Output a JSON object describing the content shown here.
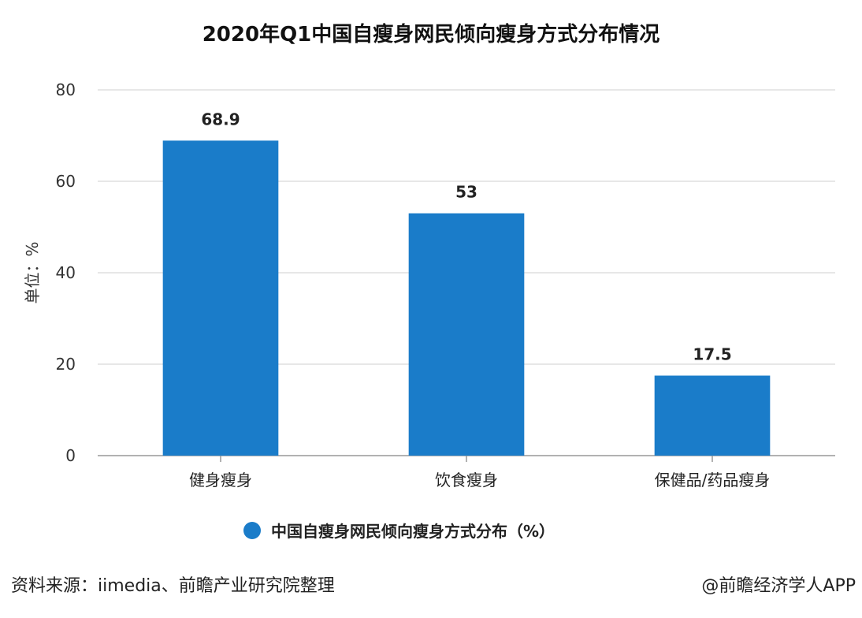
{
  "chart_data": {
    "type": "bar",
    "title": "2020年Q1中国自瘦身网民倾向瘦身方式分布情况",
    "ylabel": "单位：%",
    "xlabel": "",
    "categories": [
      "健身瘦身",
      "饮食瘦身",
      "保健品/药品瘦身"
    ],
    "series": [
      {
        "name": "中国自瘦身网民倾向瘦身方式分布（%）",
        "values": [
          68.9,
          53,
          17.5
        ],
        "labels": [
          "68.9",
          "53",
          "17.5"
        ]
      }
    ],
    "ylim": [
      0,
      80
    ],
    "yticks": [
      0,
      20,
      40,
      60,
      80
    ],
    "grid": true,
    "legend": "bottom-center",
    "bar_color": "#1a7cc9"
  },
  "footer": {
    "source": "资料来源：iimedia、前瞻产业研究院整理",
    "credit": "@前瞻经济学人APP"
  }
}
